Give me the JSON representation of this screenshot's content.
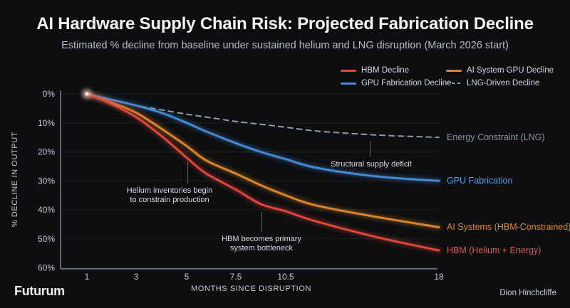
{
  "header": {
    "title": "AI Hardware Supply Chain Risk: Projected Fabrication Decline",
    "subtitle": "Estimated % decline from baseline under sustained helium and LNG disruption (March 2026 start)"
  },
  "footer": {
    "brand": "Futurum",
    "author": "Dion Hinchcliffe"
  },
  "chart_data": {
    "type": "line",
    "title": "AI Hardware Supply Chain Risk: Projected Fabrication Decline",
    "xlabel": "MONTHS SINCE DISRUPTION",
    "ylabel": "% DECLINE IN OUTPUT",
    "ylim": [
      0,
      60
    ],
    "y_axis_inverted": true,
    "grid": "horizontal",
    "legend_position": "top-right",
    "y_ticks": [
      0,
      10,
      20,
      30,
      40,
      50,
      60
    ],
    "y_tick_labels": [
      "0%",
      "10%",
      "20%",
      "30%",
      "40%",
      "50%",
      "60%"
    ],
    "x_ticks": [
      1,
      3,
      5,
      7.5,
      10.5,
      18
    ],
    "x_tick_labels": [
      "1",
      "3",
      "5",
      "7.5",
      "10.5",
      "18"
    ],
    "x": [
      1,
      2,
      3,
      4,
      5,
      6,
      7.5,
      9,
      10.5,
      12,
      15,
      18
    ],
    "series": [
      {
        "name": "HBM Decline",
        "color": "#e0463a",
        "label_color": "#e2594b",
        "dash": false,
        "end_label": "HBM (Helium + Energy)",
        "values": [
          0,
          3.5,
          8,
          14.5,
          22,
          27.5,
          33,
          38,
          40.5,
          44,
          49.5,
          54
        ]
      },
      {
        "name": "AI System GPU Decline",
        "color": "#d9852f",
        "label_color": "#dd8833",
        "dash": false,
        "end_label": "AI Systems (HBM-Constrained)",
        "values": [
          0,
          3,
          6.5,
          12,
          18,
          23,
          27.5,
          31.5,
          35,
          38.5,
          42.5,
          46
        ]
      },
      {
        "name": "GPU Fabrication Decline",
        "color": "#4289d6",
        "label_color": "#5f9ce2",
        "dash": false,
        "end_label": "GPU Fabrication",
        "values": [
          0,
          2,
          4,
          6.5,
          10,
          13,
          17,
          20,
          22.5,
          25.5,
          28.5,
          30
        ]
      },
      {
        "name": "LNG-Driven Decline",
        "color": "#939ca6",
        "label_color": "#8d96a0",
        "dash": true,
        "end_label": "Energy Constraint (LNG)",
        "values": [
          0,
          2,
          4,
          5.5,
          7,
          8,
          9.5,
          10.5,
          11.5,
          12.8,
          14.2,
          15
        ]
      }
    ],
    "annotations": [
      {
        "text": "Helium inventories begin\nto constrain production"
      },
      {
        "text": "HBM becomes primary\nsystem bottleneck"
      },
      {
        "text": "Structural supply deficit"
      }
    ]
  }
}
